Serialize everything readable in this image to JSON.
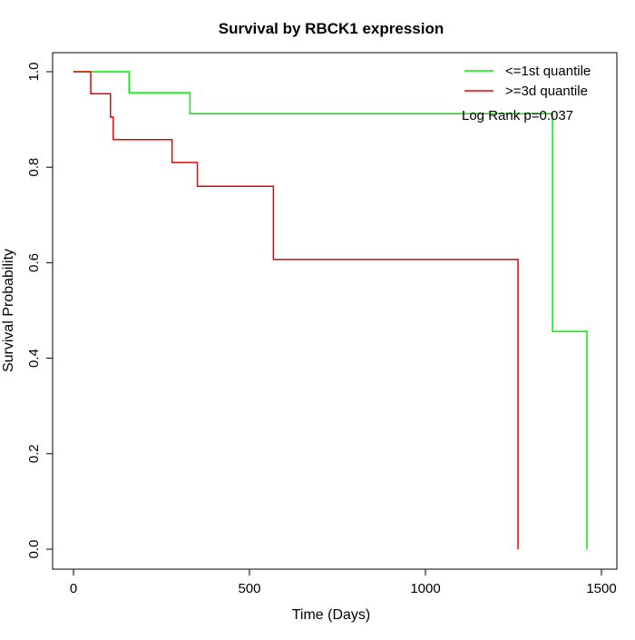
{
  "chart_data": {
    "type": "line",
    "title": "Survival by RBCK1 expression",
    "xlabel": "Time (Days)",
    "ylabel": "Survival Probability",
    "xlim": [
      0,
      1500
    ],
    "ylim": [
      0,
      1
    ],
    "xticks": [
      "0",
      "500",
      "1000",
      "1500"
    ],
    "xtick_values": [
      0,
      500,
      1000,
      1500
    ],
    "yticks": [
      "0.0",
      "0.2",
      "0.4",
      "0.6",
      "0.8",
      "1.0"
    ],
    "ytick_values": [
      0,
      0.2,
      0.4,
      0.6,
      0.8,
      1.0
    ],
    "legend_position": "top-right",
    "annotation": "Log Rank p=0.037",
    "series": [
      {
        "name": "<=1st quantile",
        "color": "#00ee00",
        "step": true,
        "x": [
          0,
          158,
          331,
          1361,
          1459
        ],
        "y": [
          1.0,
          0.956,
          0.912,
          0.456,
          0.0
        ]
      },
      {
        "name": ">=3d quantile",
        "color": "#ee0000",
        "step": true,
        "x": [
          0,
          49,
          105,
          113,
          280,
          352,
          568,
          1263
        ],
        "y": [
          1.0,
          0.954,
          0.905,
          0.858,
          0.81,
          0.76,
          0.607,
          0.0
        ]
      }
    ]
  }
}
